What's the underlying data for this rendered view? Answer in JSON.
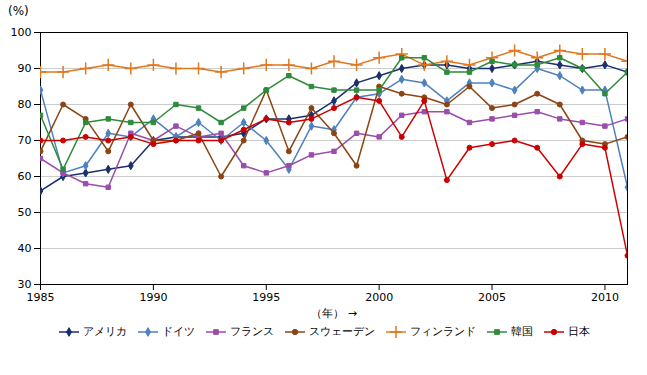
{
  "chart_data": {
    "type": "line",
    "title": "(%)",
    "x_label": "（年）",
    "x": [
      1985,
      1986,
      1987,
      1988,
      1989,
      1990,
      1991,
      1992,
      1993,
      1994,
      1995,
      1996,
      1997,
      1998,
      1999,
      2000,
      2001,
      2002,
      2003,
      2004,
      2005,
      2006,
      2007,
      2008,
      2009,
      2010,
      2011
    ],
    "series": [
      {
        "name": "アメリカ",
        "color": "#1a2f6e",
        "marker": "diamond",
        "values": [
          56,
          60,
          61,
          62,
          63,
          70,
          71,
          71,
          71,
          72,
          76,
          76,
          77,
          81,
          86,
          88,
          90,
          91,
          91,
          90,
          90,
          91,
          92,
          91,
          90,
          91,
          89
        ]
      },
      {
        "name": "ドイツ",
        "color": "#4f81bd",
        "marker": "diamond",
        "values": [
          84,
          61,
          63,
          72,
          71,
          76,
          71,
          75,
          70,
          75,
          70,
          62,
          74,
          73,
          82,
          83,
          87,
          86,
          81,
          86,
          86,
          84,
          90,
          88,
          84,
          84,
          57
        ]
      },
      {
        "name": "フランス",
        "color": "#9b4dab",
        "marker": "square",
        "values": [
          65,
          61,
          58,
          57,
          72,
          70,
          74,
          71,
          72,
          63,
          61,
          63,
          66,
          67,
          72,
          71,
          77,
          78,
          78,
          75,
          76,
          77,
          78,
          76,
          75,
          74,
          76
        ]
      },
      {
        "name": "スウェーデン",
        "color": "#8b4513",
        "marker": "circle",
        "values": [
          67,
          80,
          76,
          67,
          80,
          70,
          70,
          72,
          60,
          70,
          84,
          67,
          79,
          72,
          63,
          85,
          83,
          82,
          80,
          85,
          79,
          80,
          83,
          80,
          70,
          69,
          71
        ]
      },
      {
        "name": "フィンランド",
        "color": "#e07820",
        "marker": "plus",
        "values": [
          89,
          89,
          90,
          91,
          90,
          91,
          90,
          90,
          89,
          90,
          91,
          91,
          90,
          92,
          91,
          93,
          94,
          91,
          92,
          91,
          93,
          95,
          93,
          95,
          94,
          94,
          92
        ]
      },
      {
        "name": "韓国",
        "color": "#2e8b3a",
        "marker": "square",
        "values": [
          77,
          62,
          75,
          76,
          75,
          75,
          80,
          79,
          75,
          79,
          84,
          88,
          85,
          84,
          84,
          84,
          93,
          93,
          89,
          89,
          92,
          91,
          91,
          93,
          90,
          83,
          89
        ]
      },
      {
        "name": "日本",
        "color": "#cc0000",
        "marker": "circle",
        "values": [
          70,
          70,
          71,
          70,
          71,
          69,
          70,
          70,
          70,
          73,
          76,
          75,
          76,
          79,
          82,
          81,
          71,
          81,
          59,
          68,
          69,
          70,
          68,
          60,
          69,
          68,
          38
        ]
      }
    ],
    "xlim": [
      1985,
      2011
    ],
    "ylim": [
      30,
      100
    ],
    "xticks": [
      1985,
      1990,
      1995,
      2000,
      2005,
      2010
    ],
    "yticks": [
      30,
      40,
      50,
      60,
      70,
      80,
      90,
      100
    ],
    "grid": "y",
    "legend": "bottom"
  }
}
